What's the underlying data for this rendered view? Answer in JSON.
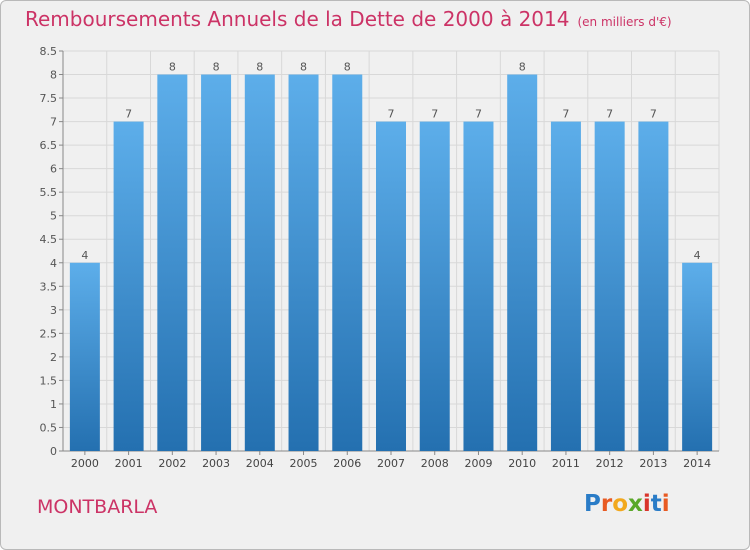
{
  "header": {
    "title": "Remboursements Annuels de la Dette de 2000 à 2014",
    "unit": "(en milliers d'€)"
  },
  "commune": "MONTBARLA",
  "logo": {
    "text": "Proxiti",
    "letters": [
      {
        "char": "P",
        "color": "#2a7cc7"
      },
      {
        "char": "r",
        "color": "#e85a22"
      },
      {
        "char": "o",
        "color": "#f2a81d"
      },
      {
        "char": "x",
        "color": "#5aa829"
      },
      {
        "char": "i",
        "color": "#d9342b"
      },
      {
        "char": "t",
        "color": "#2a7cc7"
      },
      {
        "char": "i",
        "color": "#e85a22"
      }
    ]
  },
  "chart_data": {
    "type": "bar",
    "title": "Remboursements Annuels de la Dette de 2000 à 2014",
    "subtitle": "(en milliers d'€)",
    "categories": [
      "2000",
      "2001",
      "2002",
      "2003",
      "2004",
      "2005",
      "2006",
      "2007",
      "2008",
      "2009",
      "2010",
      "2011",
      "2012",
      "2013",
      "2014"
    ],
    "values": [
      4,
      7,
      8,
      8,
      8,
      8,
      8,
      7,
      7,
      7,
      8,
      7,
      7,
      7,
      4
    ],
    "data_labels": [
      "4",
      "7",
      "8",
      "8",
      "8",
      "8",
      "8",
      "7",
      "7",
      "7",
      "8",
      "7",
      "7",
      "7",
      "4"
    ],
    "ylim": [
      0,
      8.5
    ],
    "yticks": [
      0,
      0.5,
      1,
      1.5,
      2,
      2.5,
      3,
      3.5,
      4,
      4.5,
      5,
      5.5,
      6,
      6.5,
      7,
      7.5,
      8,
      8.5
    ],
    "ytick_labels": [
      "0",
      "0.5",
      "1",
      "1.5",
      "2",
      "2.5",
      "3",
      "3.5",
      "4",
      "4.5",
      "5",
      "5.5",
      "6",
      "6.5",
      "7",
      "7.5",
      "8",
      "8.5"
    ],
    "grid": true,
    "bar_color_top": "#5daeea",
    "bar_color_bottom": "#2470b0"
  }
}
